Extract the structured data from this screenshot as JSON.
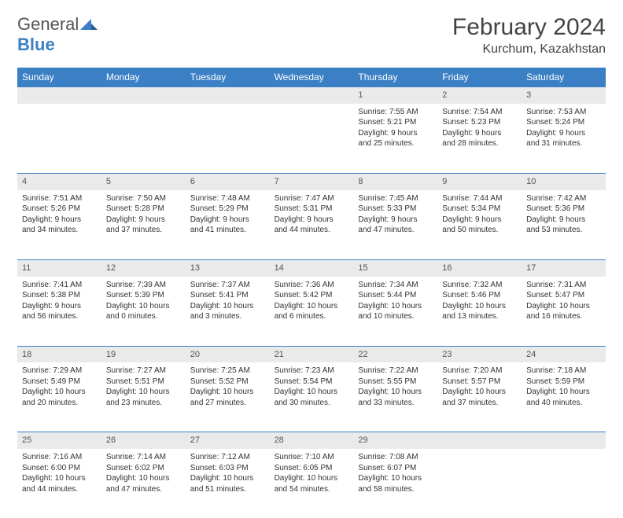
{
  "brand": {
    "part1": "General",
    "part2": "Blue"
  },
  "header": {
    "month_title": "February 2024",
    "location": "Kurchum, Kazakhstan"
  },
  "colors": {
    "header_bg": "#3b7fc4",
    "header_text": "#ffffff",
    "daynum_bg": "#eaeaea",
    "rule": "#3b7fc4",
    "body_text": "#333333"
  },
  "dow": [
    "Sunday",
    "Monday",
    "Tuesday",
    "Wednesday",
    "Thursday",
    "Friday",
    "Saturday"
  ],
  "weeks": [
    [
      null,
      null,
      null,
      null,
      {
        "n": "1",
        "sr": "Sunrise: 7:55 AM",
        "ss": "Sunset: 5:21 PM",
        "d1": "Daylight: 9 hours",
        "d2": "and 25 minutes."
      },
      {
        "n": "2",
        "sr": "Sunrise: 7:54 AM",
        "ss": "Sunset: 5:23 PM",
        "d1": "Daylight: 9 hours",
        "d2": "and 28 minutes."
      },
      {
        "n": "3",
        "sr": "Sunrise: 7:53 AM",
        "ss": "Sunset: 5:24 PM",
        "d1": "Daylight: 9 hours",
        "d2": "and 31 minutes."
      }
    ],
    [
      {
        "n": "4",
        "sr": "Sunrise: 7:51 AM",
        "ss": "Sunset: 5:26 PM",
        "d1": "Daylight: 9 hours",
        "d2": "and 34 minutes."
      },
      {
        "n": "5",
        "sr": "Sunrise: 7:50 AM",
        "ss": "Sunset: 5:28 PM",
        "d1": "Daylight: 9 hours",
        "d2": "and 37 minutes."
      },
      {
        "n": "6",
        "sr": "Sunrise: 7:48 AM",
        "ss": "Sunset: 5:29 PM",
        "d1": "Daylight: 9 hours",
        "d2": "and 41 minutes."
      },
      {
        "n": "7",
        "sr": "Sunrise: 7:47 AM",
        "ss": "Sunset: 5:31 PM",
        "d1": "Daylight: 9 hours",
        "d2": "and 44 minutes."
      },
      {
        "n": "8",
        "sr": "Sunrise: 7:45 AM",
        "ss": "Sunset: 5:33 PM",
        "d1": "Daylight: 9 hours",
        "d2": "and 47 minutes."
      },
      {
        "n": "9",
        "sr": "Sunrise: 7:44 AM",
        "ss": "Sunset: 5:34 PM",
        "d1": "Daylight: 9 hours",
        "d2": "and 50 minutes."
      },
      {
        "n": "10",
        "sr": "Sunrise: 7:42 AM",
        "ss": "Sunset: 5:36 PM",
        "d1": "Daylight: 9 hours",
        "d2": "and 53 minutes."
      }
    ],
    [
      {
        "n": "11",
        "sr": "Sunrise: 7:41 AM",
        "ss": "Sunset: 5:38 PM",
        "d1": "Daylight: 9 hours",
        "d2": "and 56 minutes."
      },
      {
        "n": "12",
        "sr": "Sunrise: 7:39 AM",
        "ss": "Sunset: 5:39 PM",
        "d1": "Daylight: 10 hours",
        "d2": "and 0 minutes."
      },
      {
        "n": "13",
        "sr": "Sunrise: 7:37 AM",
        "ss": "Sunset: 5:41 PM",
        "d1": "Daylight: 10 hours",
        "d2": "and 3 minutes."
      },
      {
        "n": "14",
        "sr": "Sunrise: 7:36 AM",
        "ss": "Sunset: 5:42 PM",
        "d1": "Daylight: 10 hours",
        "d2": "and 6 minutes."
      },
      {
        "n": "15",
        "sr": "Sunrise: 7:34 AM",
        "ss": "Sunset: 5:44 PM",
        "d1": "Daylight: 10 hours",
        "d2": "and 10 minutes."
      },
      {
        "n": "16",
        "sr": "Sunrise: 7:32 AM",
        "ss": "Sunset: 5:46 PM",
        "d1": "Daylight: 10 hours",
        "d2": "and 13 minutes."
      },
      {
        "n": "17",
        "sr": "Sunrise: 7:31 AM",
        "ss": "Sunset: 5:47 PM",
        "d1": "Daylight: 10 hours",
        "d2": "and 16 minutes."
      }
    ],
    [
      {
        "n": "18",
        "sr": "Sunrise: 7:29 AM",
        "ss": "Sunset: 5:49 PM",
        "d1": "Daylight: 10 hours",
        "d2": "and 20 minutes."
      },
      {
        "n": "19",
        "sr": "Sunrise: 7:27 AM",
        "ss": "Sunset: 5:51 PM",
        "d1": "Daylight: 10 hours",
        "d2": "and 23 minutes."
      },
      {
        "n": "20",
        "sr": "Sunrise: 7:25 AM",
        "ss": "Sunset: 5:52 PM",
        "d1": "Daylight: 10 hours",
        "d2": "and 27 minutes."
      },
      {
        "n": "21",
        "sr": "Sunrise: 7:23 AM",
        "ss": "Sunset: 5:54 PM",
        "d1": "Daylight: 10 hours",
        "d2": "and 30 minutes."
      },
      {
        "n": "22",
        "sr": "Sunrise: 7:22 AM",
        "ss": "Sunset: 5:55 PM",
        "d1": "Daylight: 10 hours",
        "d2": "and 33 minutes."
      },
      {
        "n": "23",
        "sr": "Sunrise: 7:20 AM",
        "ss": "Sunset: 5:57 PM",
        "d1": "Daylight: 10 hours",
        "d2": "and 37 minutes."
      },
      {
        "n": "24",
        "sr": "Sunrise: 7:18 AM",
        "ss": "Sunset: 5:59 PM",
        "d1": "Daylight: 10 hours",
        "d2": "and 40 minutes."
      }
    ],
    [
      {
        "n": "25",
        "sr": "Sunrise: 7:16 AM",
        "ss": "Sunset: 6:00 PM",
        "d1": "Daylight: 10 hours",
        "d2": "and 44 minutes."
      },
      {
        "n": "26",
        "sr": "Sunrise: 7:14 AM",
        "ss": "Sunset: 6:02 PM",
        "d1": "Daylight: 10 hours",
        "d2": "and 47 minutes."
      },
      {
        "n": "27",
        "sr": "Sunrise: 7:12 AM",
        "ss": "Sunset: 6:03 PM",
        "d1": "Daylight: 10 hours",
        "d2": "and 51 minutes."
      },
      {
        "n": "28",
        "sr": "Sunrise: 7:10 AM",
        "ss": "Sunset: 6:05 PM",
        "d1": "Daylight: 10 hours",
        "d2": "and 54 minutes."
      },
      {
        "n": "29",
        "sr": "Sunrise: 7:08 AM",
        "ss": "Sunset: 6:07 PM",
        "d1": "Daylight: 10 hours",
        "d2": "and 58 minutes."
      },
      null,
      null
    ]
  ]
}
